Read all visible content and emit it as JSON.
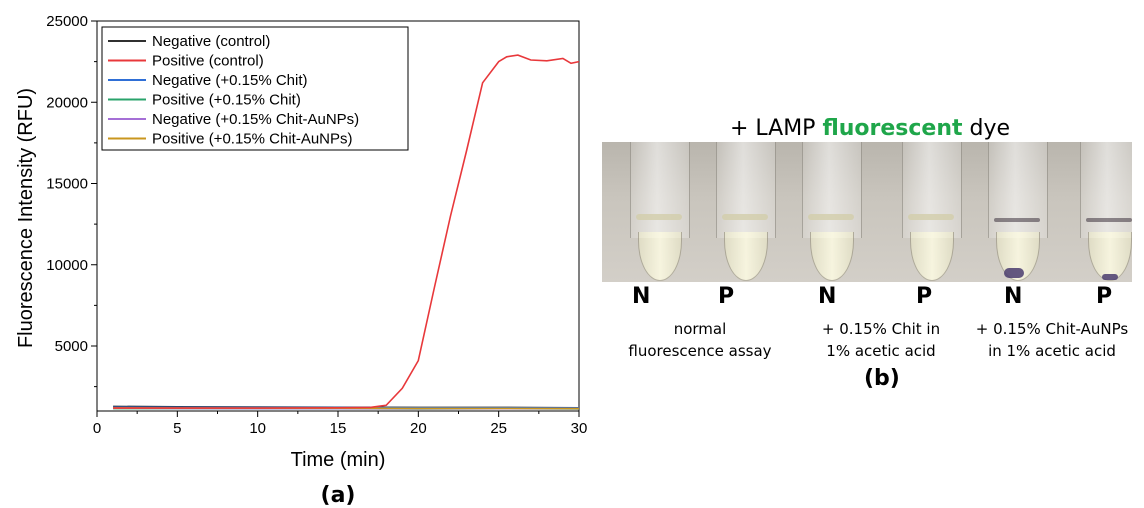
{
  "chart_data": {
    "type": "line",
    "xlabel": "Time (min)",
    "ylabel": "Fluorescence Intensity (RFU)",
    "xlim": [
      0,
      30
    ],
    "ylim": [
      1000,
      25000
    ],
    "xticks": [
      "0",
      "5",
      "10",
      "15",
      "20",
      "25",
      "30"
    ],
    "yticks": [
      "5000",
      "10000",
      "15000",
      "20000",
      "25000"
    ],
    "legend_position": "top-left",
    "grid": false,
    "panel_label": "(a)",
    "series": [
      {
        "name": "Negative (control)",
        "color": "#303030",
        "x": [
          1,
          5,
          10,
          15,
          20,
          25,
          30
        ],
        "y": [
          1280,
          1260,
          1240,
          1230,
          1220,
          1220,
          1200
        ]
      },
      {
        "name": "Positive (control)",
        "color": "#e8383b",
        "x": [
          1,
          5,
          10,
          15,
          17,
          18,
          19,
          20,
          21,
          22,
          23,
          24,
          25,
          25.5,
          26.2,
          27,
          28,
          29,
          29.5,
          30
        ],
        "y": [
          1180,
          1180,
          1180,
          1200,
          1220,
          1350,
          2400,
          4100,
          8600,
          13000,
          17000,
          21200,
          22500,
          22800,
          22900,
          22600,
          22550,
          22700,
          22400,
          22500
        ]
      },
      {
        "name": "Negative (+0.15% Chit)",
        "color": "#2f6fd6",
        "x": [
          1,
          5,
          10,
          15,
          20,
          25,
          30
        ],
        "y": [
          1230,
          1220,
          1210,
          1210,
          1200,
          1200,
          1190
        ]
      },
      {
        "name": "Positive (+0.15% Chit)",
        "color": "#2aa36b",
        "x": [
          1,
          5,
          10,
          15,
          20,
          25,
          30
        ],
        "y": [
          1150,
          1150,
          1140,
          1140,
          1130,
          1140,
          1130
        ]
      },
      {
        "name": "Negative (+0.15% Chit-AuNPs)",
        "color": "#a56fd6",
        "x": [
          1,
          5,
          10,
          15,
          20,
          25,
          30
        ],
        "y": [
          1170,
          1160,
          1150,
          1150,
          1140,
          1140,
          1140
        ]
      },
      {
        "name": "Positive (+0.15% Chit-AuNPs)",
        "color": "#c9961e",
        "x": [
          1,
          5,
          10,
          15,
          20,
          25,
          30
        ],
        "y": [
          1190,
          1180,
          1170,
          1170,
          1160,
          1160,
          1150
        ]
      }
    ]
  },
  "panel_b": {
    "title_prefix": "+ LAMP ",
    "title_highlight": "fluorescent",
    "title_suffix": " dye",
    "highlight_color": "#1fa64a",
    "tube_labels": [
      "N",
      "P",
      "N",
      "P",
      "N",
      "P"
    ],
    "captions": [
      [
        "normal",
        "fluorescence assay"
      ],
      [
        "+ 0.15% Chit in",
        "1% acetic acid"
      ],
      [
        "+ 0.15% Chit-AuNPs",
        "in 1% acetic acid"
      ]
    ],
    "panel_label": "(b)"
  }
}
